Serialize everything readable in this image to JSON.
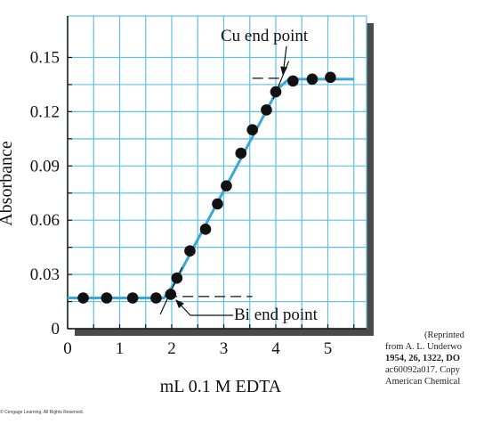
{
  "chart_data": {
    "type": "line",
    "xlabel": "mL 0.1 M EDTA",
    "ylabel": "Absorbance",
    "xlim": [
      0,
      5.6
    ],
    "ylim": [
      0,
      0.165
    ],
    "x_ticks": [
      "0",
      "1",
      "2",
      "3",
      "4",
      "5"
    ],
    "y_ticks": [
      "0",
      "0.03",
      "0.06",
      "0.09",
      "0.12",
      "0.15"
    ],
    "grid": true,
    "curve_color": "#3aa7d6",
    "grid_color": "#5cc0e8",
    "point_color": "#111111",
    "curve": [
      {
        "x": 0.0,
        "y": 0.017
      },
      {
        "x": 1.85,
        "y": 0.017
      },
      {
        "x": 2.05,
        "y": 0.025
      },
      {
        "x": 4.05,
        "y": 0.133
      },
      {
        "x": 4.25,
        "y": 0.138
      },
      {
        "x": 5.5,
        "y": 0.138
      }
    ],
    "points": [
      {
        "x": 0.3,
        "y": 0.017
      },
      {
        "x": 0.75,
        "y": 0.017
      },
      {
        "x": 1.25,
        "y": 0.017
      },
      {
        "x": 1.7,
        "y": 0.017
      },
      {
        "x": 1.98,
        "y": 0.019
      },
      {
        "x": 2.1,
        "y": 0.028
      },
      {
        "x": 2.35,
        "y": 0.043
      },
      {
        "x": 2.65,
        "y": 0.055
      },
      {
        "x": 2.88,
        "y": 0.069
      },
      {
        "x": 3.05,
        "y": 0.079
      },
      {
        "x": 3.33,
        "y": 0.097
      },
      {
        "x": 3.55,
        "y": 0.11
      },
      {
        "x": 3.82,
        "y": 0.121
      },
      {
        "x": 4.0,
        "y": 0.131
      },
      {
        "x": 4.33,
        "y": 0.137
      },
      {
        "x": 4.7,
        "y": 0.138
      },
      {
        "x": 5.05,
        "y": 0.139
      }
    ],
    "annotations": [
      {
        "text": "Cu end point",
        "x": 4.15,
        "y": 0.137
      },
      {
        "text": "Bi end point",
        "x": 1.98,
        "y": 0.017
      }
    ]
  },
  "credit_lines": [
    "(Reprinted",
    "from A. L. Underwo",
    "1954, 26, 1322, DO",
    "ac60092a017. Copy",
    "American Chemical"
  ],
  "copyright": "© Cengage Learning. All Rights Reserved."
}
